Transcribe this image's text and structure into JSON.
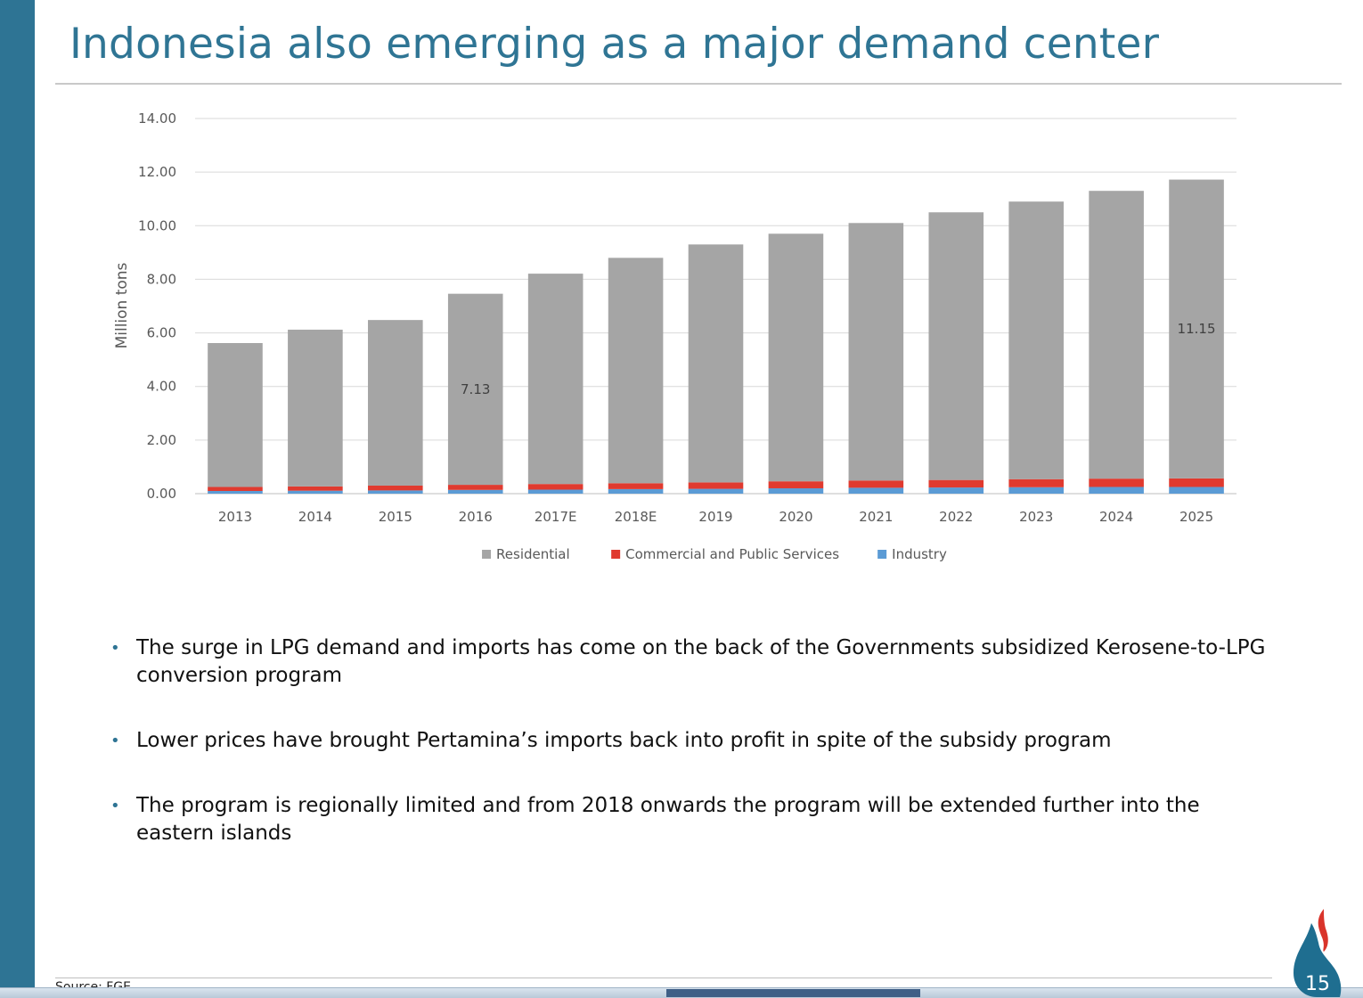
{
  "slide": {
    "title": "Indonesia also emerging as a major demand center",
    "bullets": [
      "The surge in LPG demand and imports has come on the back of the Governments subsidized Kerosene-to-LPG conversion program",
      "Lower prices have brought Pertamina’s imports back into profit in spite of the subsidy program",
      "The program is regionally limited and from 2018 onwards the program will be extended further into the eastern islands"
    ],
    "bullet_glyph": "•",
    "source": "Source: FGE",
    "page_number": "15"
  },
  "colors": {
    "accent": "#2e7494",
    "residential": "#a5a5a5",
    "commercial": "#e03a2f",
    "industry": "#5b9bd5"
  },
  "chart_data": {
    "type": "bar",
    "stacked": true,
    "categories": [
      "2013",
      "2014",
      "2015",
      "2016",
      "2017E",
      "2018E",
      "2019",
      "2020",
      "2021",
      "2022",
      "2023",
      "2024",
      "2025"
    ],
    "series": [
      {
        "name": "Residential",
        "values": [
          5.37,
          5.85,
          6.18,
          7.13,
          7.85,
          8.41,
          8.88,
          9.24,
          9.61,
          9.99,
          10.36,
          10.74,
          11.15
        ]
      },
      {
        "name": "Commercial and Public Services",
        "values": [
          0.15,
          0.16,
          0.18,
          0.19,
          0.21,
          0.22,
          0.24,
          0.26,
          0.27,
          0.28,
          0.3,
          0.31,
          0.32
        ]
      },
      {
        "name": "Industry",
        "values": [
          0.1,
          0.11,
          0.12,
          0.14,
          0.15,
          0.17,
          0.18,
          0.2,
          0.22,
          0.23,
          0.24,
          0.25,
          0.25
        ]
      }
    ],
    "data_labels": [
      {
        "category": "2016",
        "series": "Residential",
        "text": "7.13"
      },
      {
        "category": "2025",
        "series": "Residential",
        "text": "11.15"
      }
    ],
    "ylabel": "Million tons",
    "xlabel": "",
    "ylim": [
      0,
      14
    ],
    "y_ticks": [
      "0.00",
      "2.00",
      "4.00",
      "6.00",
      "8.00",
      "10.00",
      "12.00",
      "14.00"
    ],
    "grid": true,
    "legend": "bottom"
  }
}
